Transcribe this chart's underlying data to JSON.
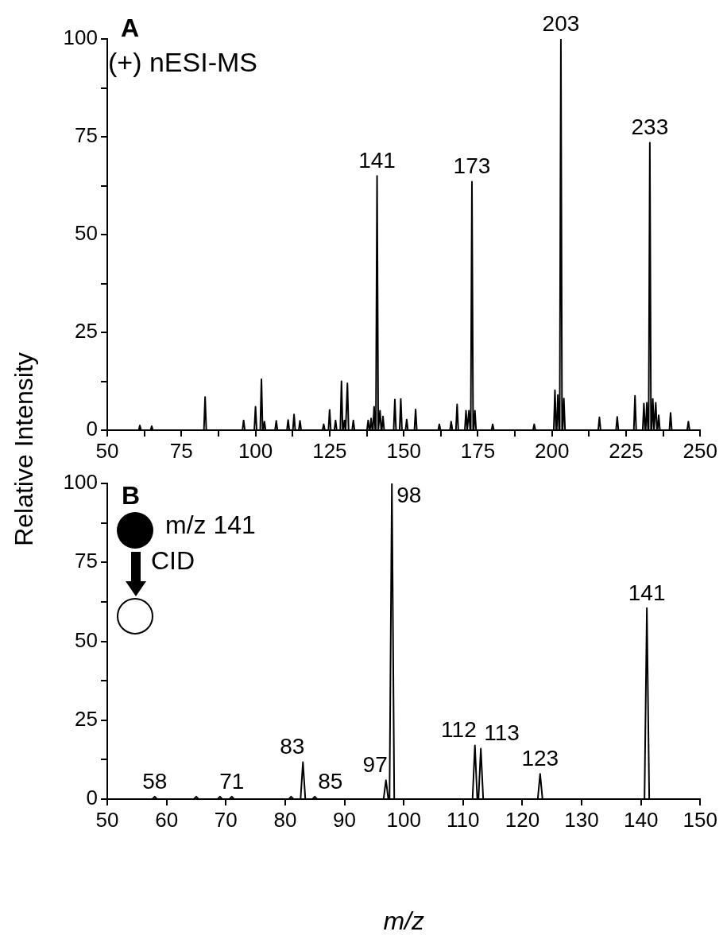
{
  "chart_data": [
    {
      "type": "line",
      "title": null,
      "ylabel": "Relative Intensity",
      "annotations": [
        "A",
        "(+) nESI-MS",
        {
          "text": "141",
          "x": 141,
          "y": 65
        },
        {
          "text": "173",
          "x": 173,
          "y": 63.5
        },
        {
          "text": "203",
          "x": 203,
          "y": 100
        },
        {
          "text": "233",
          "x": 233,
          "y": 73.5
        }
      ],
      "series": [
        {
          "color": "#000000",
          "x": [
            50,
            60.6,
            61,
            61.4,
            64.6,
            65,
            65.4,
            82.6,
            83,
            83.4,
            95.6,
            96,
            96.4,
            99.6,
            100,
            100.4,
            101.6,
            102,
            102.4,
            102.6,
            103,
            103.4,
            106.6,
            107,
            107.4,
            110.6,
            111,
            111.4,
            112.6,
            113,
            113.4,
            114.6,
            115,
            115.4,
            122.6,
            123,
            123.4,
            124.6,
            125,
            125.4,
            126.6,
            127,
            127.4,
            128.6,
            129,
            129.4,
            129.6,
            130,
            130.4,
            130.6,
            131,
            131.4,
            132.6,
            133,
            133.4,
            137.6,
            138,
            138.4,
            138.6,
            139,
            139.4,
            139.6,
            140,
            140.4,
            140.6,
            141,
            141.4,
            141.6,
            142,
            142.4,
            142.6,
            143,
            143.4,
            146.6,
            147,
            147.4,
            148.6,
            149,
            149.4,
            150.6,
            151,
            151.4,
            153.6,
            154,
            154.4,
            161.6,
            162,
            162.4,
            165.6,
            166,
            166.4,
            167.6,
            168,
            168.4,
            170.6,
            171,
            171.4,
            171.6,
            172,
            172.4,
            172.6,
            173,
            173.4,
            173.6,
            174,
            174.4,
            179.6,
            180,
            180.4,
            193.6,
            194,
            194.4,
            200.6,
            201,
            201.4,
            201.6,
            202,
            202.4,
            202.6,
            203,
            203.4,
            203.6,
            204,
            204.4,
            215.6,
            216,
            216.4,
            221.6,
            222,
            222.4,
            227.6,
            228,
            228.4,
            230.6,
            231,
            231.4,
            231.6,
            232,
            232.4,
            232.6,
            233,
            233.4,
            233.6,
            234,
            234.4,
            234.6,
            235,
            235.4,
            235.6,
            236,
            236.4,
            239.6,
            240,
            240.4,
            245.6,
            246,
            246.4,
            250
          ],
          "values": [
            0,
            0,
            1.2,
            0,
            0,
            1,
            0,
            0,
            8.5,
            0,
            0,
            2.5,
            0,
            0,
            6,
            0,
            0,
            13,
            0,
            0,
            2.2,
            0,
            0,
            2.4,
            0,
            0,
            2.6,
            0,
            0,
            4,
            0,
            0,
            2.4,
            0,
            0,
            1.5,
            0,
            0,
            5.2,
            0,
            0,
            2.5,
            0,
            0,
            12.5,
            0,
            0,
            2.5,
            0,
            0,
            12,
            0,
            0,
            2.5,
            0,
            0,
            2.5,
            0,
            0,
            3,
            0,
            0,
            6,
            0,
            0,
            65,
            0,
            0,
            5,
            0,
            0,
            3.5,
            0,
            0,
            7.8,
            0,
            0,
            8,
            0,
            0,
            2.7,
            0,
            0,
            5.3,
            0,
            0,
            1.5,
            0,
            0,
            2.2,
            0,
            0,
            6.6,
            0,
            0,
            5,
            0,
            0,
            5,
            0,
            0,
            63.5,
            0,
            0,
            5,
            0,
            0,
            1.5,
            0,
            0,
            1.5,
            0,
            0,
            10.2,
            0,
            0,
            9,
            0,
            0,
            100,
            0,
            0,
            8.1,
            0,
            0,
            3.3,
            0,
            0,
            3.4,
            0,
            0,
            8.8,
            0,
            0,
            6.8,
            0,
            0,
            7,
            0,
            0,
            73.5,
            0,
            0,
            8,
            0,
            0,
            7,
            0,
            0,
            3.8,
            0,
            0,
            4.4,
            0,
            0,
            2.2,
            0,
            0
          ]
        }
      ],
      "xlim": [
        50,
        250
      ],
      "xticks": [
        50,
        {
          "value": 62.5,
          "label": null
        },
        75,
        {
          "value": 87.5,
          "label": null
        },
        100,
        {
          "value": 112.5,
          "label": null
        },
        125,
        {
          "value": 137.5,
          "label": null
        },
        150,
        {
          "value": 162.5,
          "label": null
        },
        175,
        {
          "value": 187.5,
          "label": null
        },
        200,
        {
          "value": 212.5,
          "label": null
        },
        225,
        {
          "value": 237.5,
          "label": null
        },
        250
      ],
      "ylim": [
        0,
        100
      ],
      "yticks": [
        0,
        {
          "value": 12.5,
          "label": null
        },
        25,
        {
          "value": 37.5,
          "label": null
        },
        50,
        {
          "value": 62.5,
          "label": null
        },
        75,
        {
          "value": 87.5,
          "label": null
        },
        100
      ],
      "grid": false,
      "legend": false,
      "marker": "none",
      "line_style": "solid"
    },
    {
      "type": "line",
      "xlabel": "m/z",
      "annotations": [
        "B",
        "m/z 141",
        "CID",
        {
          "text": "58",
          "x": 58,
          "y": 0.8
        },
        {
          "text": "71",
          "x": 71,
          "y": 0.8
        },
        {
          "text": "83",
          "x": 83,
          "y": 11.7
        },
        {
          "text": "85",
          "x": 85,
          "y": 0.8
        },
        {
          "text": "97",
          "x": 97,
          "y": 6
        },
        {
          "text": "98",
          "x": 98,
          "y": 100
        },
        {
          "text": "112",
          "x": 112,
          "y": 17
        },
        {
          "text": "113",
          "x": 113,
          "y": 16
        },
        {
          "text": "123",
          "x": 123,
          "y": 8
        },
        {
          "text": "141",
          "x": 141,
          "y": 60.5
        }
      ],
      "series": [
        {
          "color": "#000000",
          "x": [
            50,
            57.6,
            58,
            58.4,
            64.6,
            65,
            65.4,
            68.6,
            69,
            69.4,
            70.6,
            71,
            71.4,
            80.6,
            81,
            81.4,
            82.6,
            83,
            83.4,
            84.6,
            85,
            85.4,
            96.6,
            97,
            97.4,
            97.6,
            98,
            98.4,
            111.6,
            112,
            112.4,
            112.6,
            113,
            113.4,
            122.6,
            123,
            123.4,
            140.6,
            141,
            141.4,
            150
          ],
          "values": [
            0,
            0,
            0.8,
            0,
            0,
            0.8,
            0,
            0,
            0.8,
            0,
            0,
            0.8,
            0,
            0,
            0.8,
            0,
            0,
            11.7,
            0,
            0,
            0.8,
            0,
            0,
            6,
            0,
            0,
            100,
            0,
            0,
            17,
            0,
            0,
            16,
            0,
            0,
            8,
            0,
            0,
            60.5,
            0,
            0
          ]
        }
      ],
      "xlim": [
        50,
        150
      ],
      "xticks": [
        50,
        60,
        70,
        80,
        90,
        100,
        110,
        120,
        130,
        140,
        150
      ],
      "ylim": [
        0,
        100
      ],
      "yticks": [
        0,
        {
          "value": 12.5,
          "label": null
        },
        25,
        {
          "value": 37.5,
          "label": null
        },
        50,
        {
          "value": 62.5,
          "label": null
        },
        75,
        {
          "value": 87.5,
          "label": null
        },
        100
      ],
      "grid": false,
      "legend": false,
      "marker": "none",
      "line_style": "solid"
    }
  ]
}
